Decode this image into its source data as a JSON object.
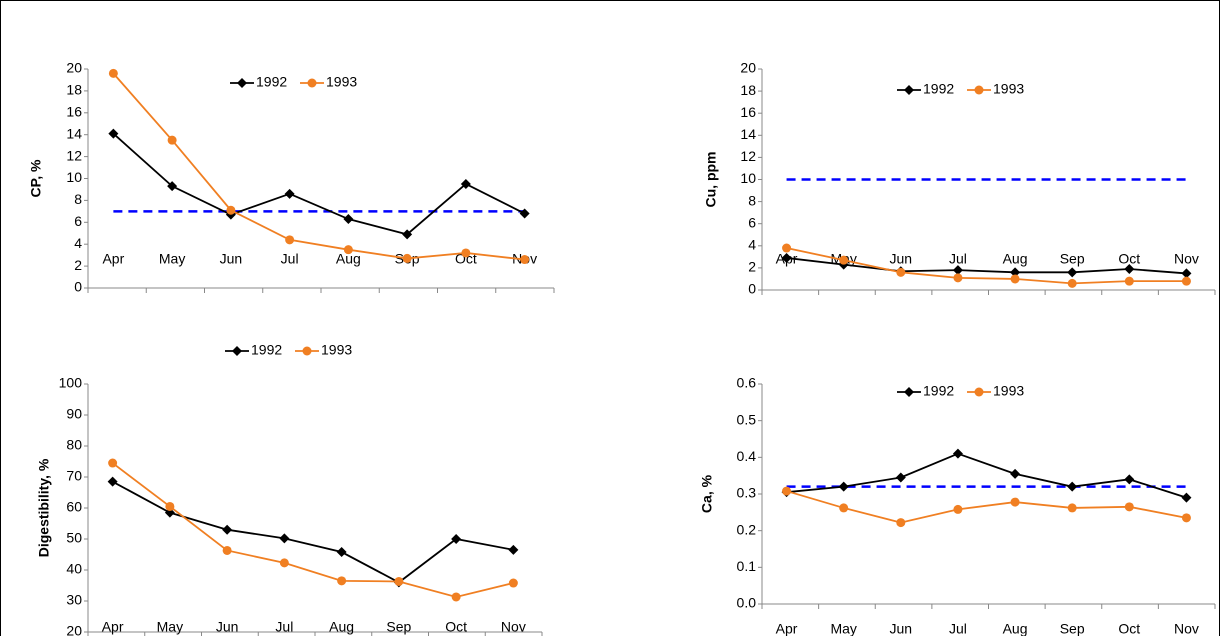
{
  "chart_data": [
    {
      "type": "line",
      "y_label": "CP, %",
      "categories": [
        "Apr",
        "May",
        "Jun",
        "Jul",
        "Aug",
        "Sep",
        "Oct",
        "Nov"
      ],
      "series": [
        {
          "name": "1992",
          "color": "#000000",
          "marker": "diamond",
          "values": [
            14.1,
            9.3,
            6.7,
            8.6,
            6.3,
            4.9,
            9.5,
            6.8
          ]
        },
        {
          "name": "1993",
          "color": "#f07f22",
          "marker": "circle",
          "values": [
            19.6,
            13.5,
            7.1,
            4.4,
            3.5,
            2.7,
            3.2,
            2.6
          ]
        }
      ],
      "reference_line": 7,
      "reference_color": "#0000ff",
      "ylim": [
        0,
        20
      ],
      "yticks": [
        0,
        2,
        4,
        6,
        8,
        10,
        12,
        14,
        16,
        18,
        20
      ]
    },
    {
      "type": "line",
      "y_label": "Cu, ppm",
      "categories": [
        "Apr",
        "May",
        "Jun",
        "Jul",
        "Aug",
        "Sep",
        "Oct",
        "Nov"
      ],
      "series": [
        {
          "name": "1992",
          "color": "#000000",
          "marker": "diamond",
          "values": [
            2.9,
            2.3,
            1.7,
            1.8,
            1.6,
            1.6,
            1.9,
            1.5
          ]
        },
        {
          "name": "1993",
          "color": "#f07f22",
          "marker": "circle",
          "values": [
            3.8,
            2.7,
            1.6,
            1.1,
            1.0,
            0.6,
            0.8,
            0.8
          ]
        }
      ],
      "reference_line": 10,
      "reference_color": "#0000ff",
      "ylim": [
        0,
        20
      ],
      "yticks": [
        0,
        2,
        4,
        6,
        8,
        10,
        12,
        14,
        16,
        18,
        20
      ]
    },
    {
      "type": "line",
      "y_label": "Digestibility, %",
      "categories": [
        "Apr",
        "May",
        "Jun",
        "Jul",
        "Aug",
        "Sep",
        "Oct",
        "Nov"
      ],
      "series": [
        {
          "name": "1992",
          "color": "#000000",
          "marker": "diamond",
          "values": [
            68.5,
            58.5,
            53,
            50.2,
            45.8,
            36,
            50,
            46.5
          ]
        },
        {
          "name": "1993",
          "color": "#f07f22",
          "marker": "circle",
          "values": [
            74.5,
            60.5,
            46.3,
            42.3,
            36.5,
            36.3,
            31.3,
            35.8
          ]
        }
      ],
      "ylim": [
        20,
        100
      ],
      "yticks": [
        20,
        30,
        40,
        50,
        60,
        70,
        80,
        90,
        100
      ]
    },
    {
      "type": "line",
      "y_label": "Ca, %",
      "categories": [
        "Apr",
        "May",
        "Jun",
        "Jul",
        "Aug",
        "Sep",
        "Oct",
        "Nov"
      ],
      "series": [
        {
          "name": "1992",
          "color": "#000000",
          "marker": "diamond",
          "values": [
            0.305,
            0.32,
            0.345,
            0.41,
            0.355,
            0.32,
            0.34,
            0.29
          ]
        },
        {
          "name": "1993",
          "color": "#f07f22",
          "marker": "circle",
          "values": [
            0.308,
            0.262,
            0.222,
            0.258,
            0.278,
            0.262,
            0.265,
            0.235
          ]
        }
      ],
      "reference_line": 0.32,
      "reference_color": "#0000ff",
      "ylim": [
        0,
        0.6
      ],
      "yticks": [
        {
          "value": 0,
          "label": "0.0"
        },
        0.1,
        0.2,
        0.3,
        0.4,
        0.5,
        0.6
      ]
    }
  ]
}
